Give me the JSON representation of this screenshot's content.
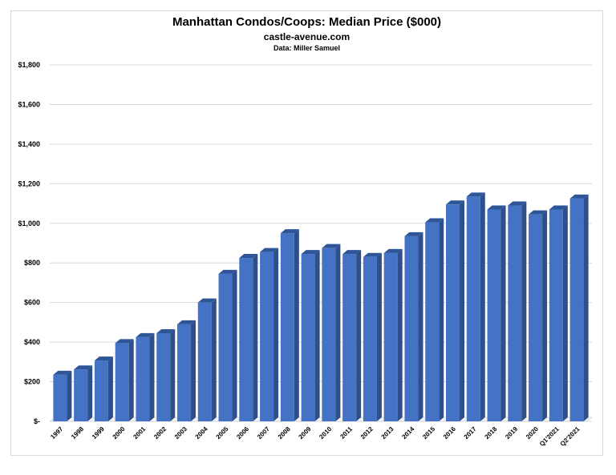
{
  "chart_data": {
    "type": "bar",
    "title": "Manhattan Condos/Coops: Median Price ($000)",
    "subtitle": "castle-avenue.com",
    "source": "Data: Miller Samuel",
    "xlabel": "",
    "ylabel": "",
    "ylim": [
      0,
      1800
    ],
    "grid": true,
    "bar_color": "#4472c4",
    "bar_side_color": "#2f4f8a",
    "bar_top_color": "#2e5597",
    "yticks": [
      {
        "value": 0,
        "label": "$-"
      },
      {
        "value": 200,
        "label": "$200"
      },
      {
        "value": 400,
        "label": "$400"
      },
      {
        "value": 600,
        "label": "$600"
      },
      {
        "value": 800,
        "label": "$800"
      },
      {
        "value": 1000,
        "label": "$1,000"
      },
      {
        "value": 1200,
        "label": "$1,200"
      },
      {
        "value": 1400,
        "label": "$1,400"
      },
      {
        "value": 1600,
        "label": "$1,600"
      },
      {
        "value": 1800,
        "label": "$1,800"
      }
    ],
    "categories": [
      "1997",
      "1998",
      "1999",
      "2000",
      "2001",
      "2002",
      "2003",
      "2004",
      "2005",
      "2006",
      "2007",
      "2008",
      "2009",
      "2010",
      "2011",
      "2012",
      "2013",
      "2014",
      "2015",
      "2016",
      "2017",
      "2018",
      "2019",
      "2020",
      "Q1'2021",
      "Q2'2021"
    ],
    "values": [
      235,
      262,
      307,
      395,
      425,
      445,
      490,
      600,
      745,
      825,
      855,
      950,
      845,
      875,
      845,
      830,
      850,
      935,
      1005,
      1095,
      1135,
      1070,
      1090,
      1045,
      1070,
      1125
    ]
  }
}
